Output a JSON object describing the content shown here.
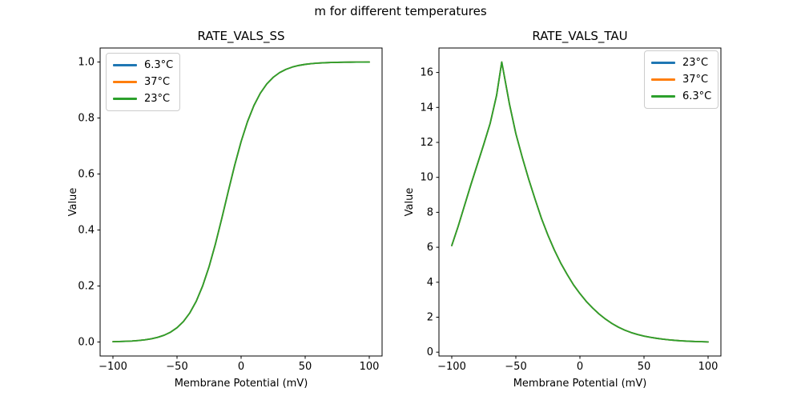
{
  "figure": {
    "suptitle": "m for different temperatures",
    "background": "#ffffff",
    "frame_color": "#000000"
  },
  "palette": {
    "blue": "#1f77b4",
    "orange": "#ff7f0e",
    "green": "#2ca02c"
  },
  "chart_data": [
    {
      "type": "line",
      "title": "RATE_VALS_SS",
      "xlabel": "Membrane Potential (mV)",
      "ylabel": "Value",
      "xlim": [
        -110,
        110
      ],
      "ylim": [
        -0.05,
        1.05
      ],
      "grid": false,
      "xticks": [
        {
          "v": -100,
          "label": "−100"
        },
        {
          "v": -50,
          "label": "−50"
        },
        {
          "v": 0,
          "label": "0"
        },
        {
          "v": 50,
          "label": "50"
        },
        {
          "v": 100,
          "label": "100"
        }
      ],
      "yticks": [
        {
          "v": 0.0,
          "label": "0.0"
        },
        {
          "v": 0.2,
          "label": "0.2"
        },
        {
          "v": 0.4,
          "label": "0.4"
        },
        {
          "v": 0.6,
          "label": "0.6"
        },
        {
          "v": 0.8,
          "label": "0.8"
        },
        {
          "v": 1.0,
          "label": "1.0"
        }
      ],
      "legend": {
        "loc": "upper left",
        "entries": [
          {
            "label": "6.3°C",
            "color": "#1f77b4"
          },
          {
            "label": "37°C",
            "color": "#ff7f0e"
          },
          {
            "label": "23°C",
            "color": "#2ca02c"
          }
        ]
      },
      "note": "all three temperature series overlap exactly; green (drawn last) is visible",
      "x": [
        -100,
        -95,
        -90,
        -85,
        -80,
        -75,
        -70,
        -65,
        -60,
        -55,
        -50,
        -45,
        -40,
        -35,
        -30,
        -25,
        -20,
        -15,
        -10,
        -5,
        0,
        5,
        10,
        15,
        20,
        25,
        30,
        35,
        40,
        45,
        50,
        55,
        60,
        65,
        70,
        75,
        80,
        85,
        90,
        95,
        100
      ],
      "y": [
        0.0011,
        0.0017,
        0.0025,
        0.0036,
        0.0053,
        0.0078,
        0.0114,
        0.0167,
        0.0243,
        0.0353,
        0.051,
        0.0732,
        0.104,
        0.1456,
        0.2003,
        0.2689,
        0.3508,
        0.4426,
        0.5384,
        0.6315,
        0.7157,
        0.7871,
        0.8445,
        0.8886,
        0.9214,
        0.9451,
        0.962,
        0.9738,
        0.982,
        0.9877,
        0.9916,
        0.9943,
        0.9961,
        0.9973,
        0.9982,
        0.9988,
        0.9992,
        0.9994,
        0.9996,
        0.9997,
        0.9998
      ],
      "series": [
        {
          "name": "6.3°C",
          "color": "#1f77b4"
        },
        {
          "name": "37°C",
          "color": "#ff7f0e"
        },
        {
          "name": "23°C",
          "color": "#2ca02c"
        }
      ]
    },
    {
      "type": "line",
      "title": "RATE_VALS_TAU",
      "xlabel": "Membrane Potential (mV)",
      "ylabel": "Value",
      "xlim": [
        -110,
        110
      ],
      "ylim": [
        -0.22,
        17.4
      ],
      "grid": false,
      "xticks": [
        {
          "v": -100,
          "label": "−100"
        },
        {
          "v": -50,
          "label": "−50"
        },
        {
          "v": 0,
          "label": "0"
        },
        {
          "v": 50,
          "label": "50"
        },
        {
          "v": 100,
          "label": "100"
        }
      ],
      "yticks": [
        {
          "v": 0,
          "label": "0"
        },
        {
          "v": 2,
          "label": "2"
        },
        {
          "v": 4,
          "label": "4"
        },
        {
          "v": 6,
          "label": "6"
        },
        {
          "v": 8,
          "label": "8"
        },
        {
          "v": 10,
          "label": "10"
        },
        {
          "v": 12,
          "label": "12"
        },
        {
          "v": 14,
          "label": "14"
        },
        {
          "v": 16,
          "label": "16"
        }
      ],
      "legend": {
        "loc": "upper right",
        "entries": [
          {
            "label": "23°C",
            "color": "#1f77b4"
          },
          {
            "label": "37°C",
            "color": "#ff7f0e"
          },
          {
            "label": "6.3°C",
            "color": "#2ca02c"
          }
        ]
      },
      "note": "all three temperature series overlap exactly; green (drawn last) is visible; peak ≈ 16.6 at −61 mV",
      "x": [
        -100,
        -95,
        -90,
        -85,
        -80,
        -75,
        -70,
        -65,
        -61,
        -55,
        -50,
        -45,
        -40,
        -35,
        -30,
        -25,
        -20,
        -15,
        -10,
        -5,
        0,
        5,
        10,
        15,
        20,
        25,
        30,
        35,
        40,
        45,
        50,
        55,
        60,
        65,
        70,
        75,
        80,
        85,
        90,
        95,
        100
      ],
      "y": [
        6.1,
        7.2,
        8.4,
        9.6,
        10.75,
        11.9,
        13.1,
        14.7,
        16.6,
        14.2,
        12.5,
        11.15,
        9.9,
        8.75,
        7.65,
        6.7,
        5.85,
        5.1,
        4.45,
        3.85,
        3.35,
        2.9,
        2.52,
        2.18,
        1.89,
        1.64,
        1.43,
        1.26,
        1.12,
        1.01,
        0.92,
        0.85,
        0.79,
        0.74,
        0.7,
        0.67,
        0.645,
        0.625,
        0.61,
        0.597,
        0.585
      ],
      "series": [
        {
          "name": "23°C",
          "color": "#1f77b4"
        },
        {
          "name": "37°C",
          "color": "#ff7f0e"
        },
        {
          "name": "6.3°C",
          "color": "#2ca02c"
        }
      ]
    }
  ]
}
